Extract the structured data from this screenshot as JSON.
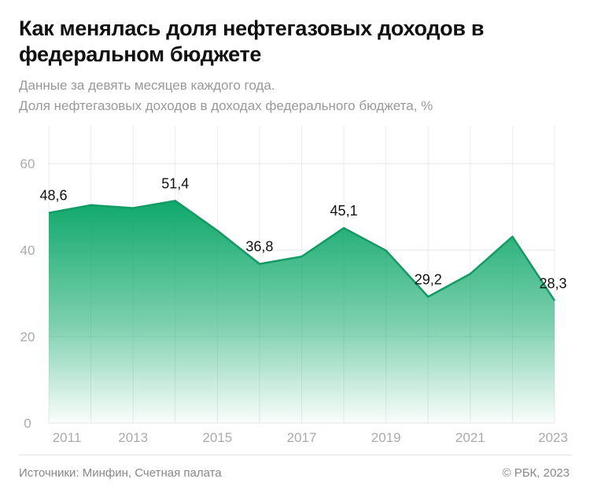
{
  "title": "Как менялась доля нефтегазовых доходов в федеральном бюджете",
  "subtitle_1": "Данные за девять месяцев каждого года.",
  "subtitle_2": "Доля нефтегазовых доходов в доходах федерального бюджета, %",
  "source": "Источники: Минфин, Счетная палата",
  "credit": "© РБК, 2023",
  "colors": {
    "fill_top": "#0fa86a",
    "line": "#149a64"
  },
  "chart_data": {
    "type": "area",
    "x": [
      2011,
      2012,
      2013,
      2014,
      2015,
      2016,
      2017,
      2018,
      2019,
      2020,
      2021,
      2022,
      2023
    ],
    "values": [
      48.6,
      50.4,
      49.7,
      51.4,
      44.5,
      36.8,
      38.5,
      45.1,
      39.9,
      29.2,
      34.5,
      43.1,
      28.3
    ],
    "data_labels": {
      "2011": "48,6",
      "2014": "51,4",
      "2016": "36,8",
      "2018": "45,1",
      "2020": "29,2",
      "2023": "28,3"
    },
    "x_ticks": [
      "2011",
      "2013",
      "2015",
      "2017",
      "2019",
      "2021",
      "2023"
    ],
    "y_ticks": [
      "0",
      "20",
      "40",
      "60"
    ],
    "ylim": [
      0,
      60
    ],
    "xlim": [
      2011,
      2023
    ],
    "grid": true
  }
}
